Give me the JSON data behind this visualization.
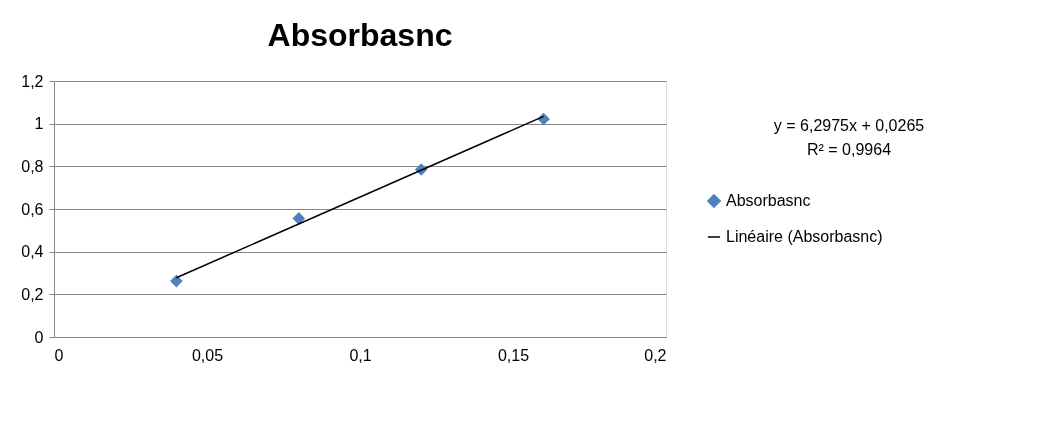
{
  "chart_data": {
    "type": "scatter",
    "title": "Absorbasnc",
    "series": [
      {
        "name": "Absorbasnc",
        "marker": "diamond",
        "color": "#4f81bd",
        "x": [
          0.04,
          0.08,
          0.12,
          0.16
        ],
        "values": [
          0.262,
          0.556,
          0.785,
          1.022
        ]
      },
      {
        "name": "Linéaire (Absorbasnc)",
        "type": "line",
        "color": "#000000",
        "x": [
          0.04,
          0.16
        ],
        "values": [
          0.278,
          1.034
        ]
      }
    ],
    "xlim": [
      0,
      0.2
    ],
    "xticks": [
      0,
      {
        "value": 0.05,
        "label": "0,05"
      },
      {
        "value": 0.1,
        "label": "0,1"
      },
      {
        "value": 0.15,
        "label": "0,15"
      },
      {
        "value": 0.2,
        "label": "0,2"
      }
    ],
    "ylim": [
      0,
      1.2
    ],
    "yticks": [
      0,
      {
        "value": 0.2,
        "label": "0,2"
      },
      {
        "value": 0.4,
        "label": "0,4"
      },
      {
        "value": 0.6,
        "label": "0,6"
      },
      {
        "value": 0.8,
        "label": "0,8"
      },
      1,
      {
        "value": 1.2,
        "label": "1,2"
      }
    ],
    "annotations": [
      "y = 6,2975x + 0,0265",
      "R² = 0,9964"
    ],
    "grid": "y",
    "legend": "right",
    "line_style": "solid"
  }
}
